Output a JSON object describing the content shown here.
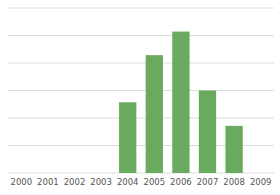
{
  "chart_data": {
    "type": "bar",
    "categories": [
      "2000",
      "2001",
      "2002",
      "2003",
      "2004",
      "2005",
      "2006",
      "2007",
      "2008",
      "2009"
    ],
    "values": [
      0,
      0,
      0,
      0,
      3,
      5,
      6,
      3.5,
      2,
      0
    ],
    "color": "#6aaa5e",
    "ylim": [
      0,
      7
    ],
    "yticks": [
      0,
      1.1666666666666667,
      2.3333333333333335,
      3.5,
      4.666666666666667,
      5.833333333333334,
      7
    ],
    "grid": true,
    "tick_labels": "x"
  }
}
